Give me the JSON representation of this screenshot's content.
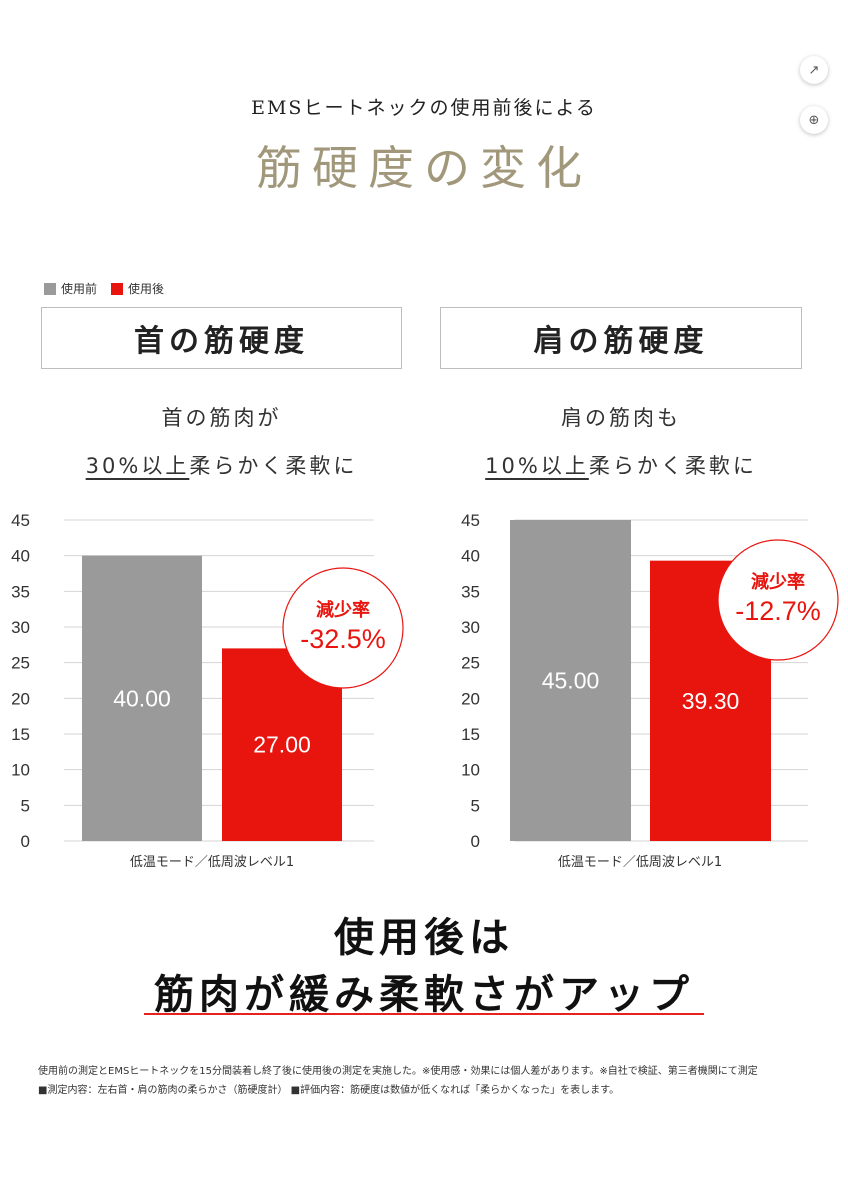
{
  "header": {
    "subtitle": "EMSヒートネックの使用前後による",
    "title": "筋硬度の変化"
  },
  "legend": {
    "before": "使用前",
    "after": "使用後"
  },
  "colors": {
    "before": "#9a9a9a",
    "after": "#e8150f",
    "title": "#a1977b",
    "rule": "#e8221a"
  },
  "panels": [
    {
      "heading": "首の筋硬度",
      "line1": "首の筋肉が",
      "line2_ul": "30%以上",
      "line2_rest": "柔らかく柔軟に",
      "caption": "低温モード／低周波レベル1",
      "badge_label": "減少率",
      "badge_value": "-32.5%"
    },
    {
      "heading": "肩の筋硬度",
      "line1": "肩の筋肉も",
      "line2_ul": "10%以上",
      "line2_rest": "柔らかく柔軟に",
      "caption": "低温モード／低周波レベル1",
      "badge_label": "減少率",
      "badge_value": "-12.7%"
    }
  ],
  "chart_data": [
    {
      "type": "bar",
      "categories": [
        "使用前",
        "使用後"
      ],
      "values": [
        40.0,
        27.0
      ],
      "value_labels": [
        "40.00",
        "27.00"
      ],
      "yticks": [
        0,
        5,
        10,
        15,
        20,
        25,
        30,
        35,
        40,
        45
      ],
      "ylim": [
        0,
        45
      ],
      "xlabel": "低温モード／低周波レベル1",
      "grid": true
    },
    {
      "type": "bar",
      "categories": [
        "使用前",
        "使用後"
      ],
      "values": [
        45.0,
        39.3
      ],
      "value_labels": [
        "45.00",
        "39.30"
      ],
      "yticks": [
        0,
        5,
        10,
        15,
        20,
        25,
        30,
        35,
        40,
        45
      ],
      "ylim": [
        0,
        45
      ],
      "xlabel": "低温モード／低周波レベル1",
      "grid": true
    }
  ],
  "conclusion": {
    "line1": "使用後は",
    "line2": "筋肉が緩み柔軟さがアップ"
  },
  "notes": {
    "line1": "使用前の測定とEMSヒートネックを15分間装着し終了後に使用後の測定を実施した。※使用感・効果には個人差があります。※自社で検証、第三者機関にて測定",
    "line2": "■測定内容：左右首・肩の筋肉の柔らかさ（筋硬度計） ■評価内容：筋硬度は数値が低くなれば「柔らかくなった」を表します。"
  }
}
